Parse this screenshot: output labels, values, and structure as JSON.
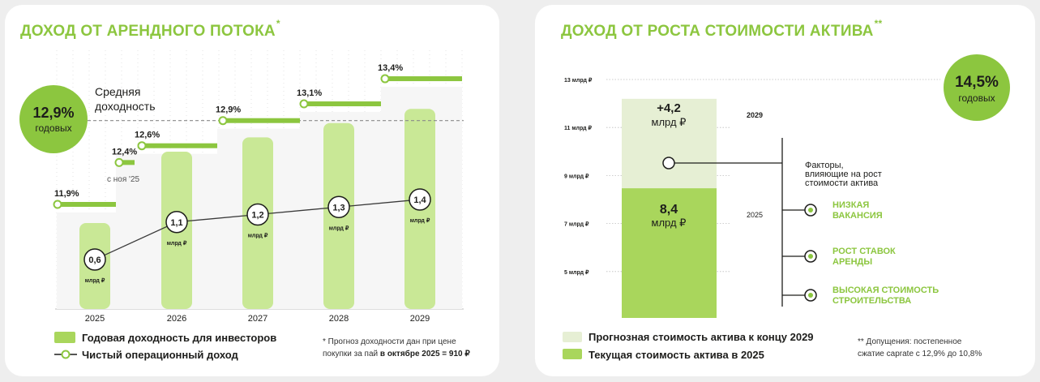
{
  "left": {
    "title": "ДОХОД ОТ АРЕНДНОГО ПОТОКА",
    "title_mark": "*",
    "avg_badge": {
      "value": "12,9%",
      "label": "годовых"
    },
    "avg_label": [
      "Средняя",
      "доходность"
    ],
    "start_note": "с ноя '25",
    "legend": [
      {
        "label": "Годовая доходность для инвесторов",
        "kind": "bar"
      },
      {
        "label": "Чистый операционный доход",
        "kind": "line"
      }
    ],
    "footnote_prefix": "* Прогноз доходности дан при цене покупки за пай ",
    "footnote_bold": "в октябре 2025 = 910 ₽",
    "colors": {
      "accent": "#8cc63f",
      "bar": "#c9e896",
      "bar_dark": "#a9d65c"
    }
  },
  "right": {
    "title": "ДОХОД ОТ РОСТА СТОИМОСТИ АКТИВА",
    "title_mark": "**",
    "badge": {
      "value": "14,5%",
      "label": "годовых"
    },
    "factors_label": [
      "Факторы,",
      "влияющие на рост",
      "стоимости актива"
    ],
    "factors": [
      [
        "НИЗКАЯ",
        "ВАКАНСИЯ"
      ],
      [
        "РОСТ СТАВОК",
        "АРЕНДЫ"
      ],
      [
        "ВЫСОКАЯ СТОИМОСТЬ",
        "СТРОИТЕЛЬСТВА"
      ]
    ],
    "legend": [
      {
        "label": "Прогнозная стоимость актива к концу 2029",
        "color": "#e6efd4"
      },
      {
        "label": "Текущая стоимость актива в 2025",
        "color": "#a9d65c"
      }
    ],
    "footnote": [
      "** Допущения: постепенное",
      "сжатие caprate с 12,9% до 10,8%"
    ]
  },
  "chart_data": [
    {
      "type": "bar",
      "title": "ДОХОД ОТ АРЕНДНОГО ПОТОКА",
      "categories": [
        "2025",
        "2026",
        "2027",
        "2028",
        "2029"
      ],
      "series": [
        {
          "name": "Годовая доходность для инвесторов",
          "type": "step",
          "points": [
            {
              "period": "2025",
              "value": 11.9,
              "label": "11,9%"
            },
            {
              "period": "с ноя '25",
              "value": 12.4,
              "label": "12,4%"
            },
            {
              "period": "2026",
              "value": 12.6,
              "label": "12,6%"
            },
            {
              "period": "2027",
              "value": 12.9,
              "label": "12,9%"
            },
            {
              "period": "2028",
              "value": 13.1,
              "label": "13,1%"
            },
            {
              "period": "2029",
              "value": 13.4,
              "label": "13,4%"
            }
          ]
        },
        {
          "name": "Чистый операционный доход",
          "type": "line",
          "unit": "млрд ₽",
          "values": [
            0.6,
            1.1,
            1.2,
            1.3,
            1.4
          ],
          "labels": [
            "0,6",
            "1,1",
            "1,2",
            "1,3",
            "1,4"
          ]
        }
      ],
      "average": {
        "value": 12.9,
        "label": "Средняя доходность"
      }
    },
    {
      "type": "bar",
      "title": "ДОХОД ОТ РОСТА СТОИМОСТИ АКТИВА",
      "yticks": [
        "13 млрд ₽",
        "11 млрд ₽",
        "9 млрд ₽",
        "7 млрд ₽",
        "5 млрд ₽"
      ],
      "ytick_values": [
        13,
        11,
        9,
        7,
        5
      ],
      "ylim": [
        3,
        14
      ],
      "stack": [
        {
          "name": "Текущая стоимость актива в 2025",
          "value": 8.4,
          "label": [
            "8,4",
            "млрд ₽"
          ],
          "year": "2025"
        },
        {
          "name": "Прогнозная стоимость актива к концу 2029",
          "increment": 4.2,
          "label": [
            "+4,2",
            "млрд ₽"
          ],
          "year": "2029"
        }
      ]
    }
  ]
}
